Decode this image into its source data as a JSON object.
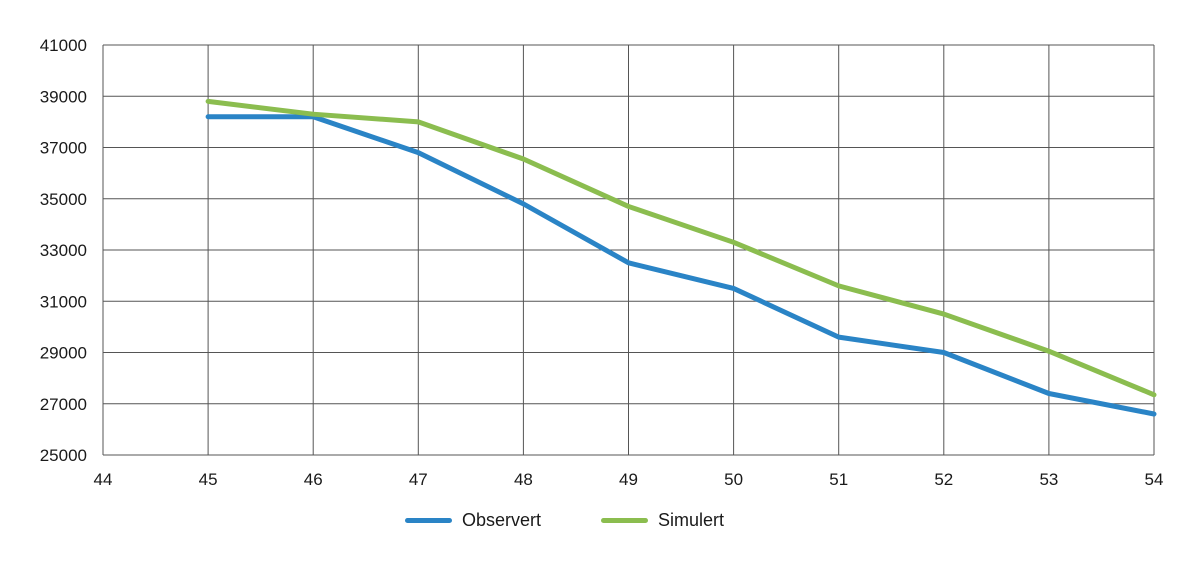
{
  "chart_data": {
    "type": "line",
    "title": "",
    "xlabel": "",
    "ylabel": "",
    "x": [
      45,
      46,
      47,
      48,
      49,
      50,
      51,
      52,
      53,
      54
    ],
    "x_ticks": [
      44,
      45,
      46,
      47,
      48,
      49,
      50,
      51,
      52,
      53,
      54
    ],
    "y_ticks": [
      25000,
      27000,
      29000,
      31000,
      33000,
      35000,
      37000,
      39000,
      41000
    ],
    "xlim": [
      44,
      54
    ],
    "ylim": [
      25000,
      41000
    ],
    "grid": true,
    "legend_position": "bottom",
    "series": [
      {
        "name": "Observert",
        "color": "#2a84c6",
        "values": [
          38200,
          38200,
          36800,
          34800,
          32500,
          31500,
          29600,
          29000,
          27400,
          26600
        ]
      },
      {
        "name": "Simulert",
        "color": "#8bbd4f",
        "values": [
          38800,
          38300,
          38000,
          36550,
          34700,
          33300,
          31600,
          30500,
          29050,
          27350
        ]
      }
    ]
  },
  "legend": {
    "items": [
      {
        "label": "Observert",
        "color": "#2a84c6"
      },
      {
        "label": "Simulert",
        "color": "#8bbd4f"
      }
    ]
  }
}
